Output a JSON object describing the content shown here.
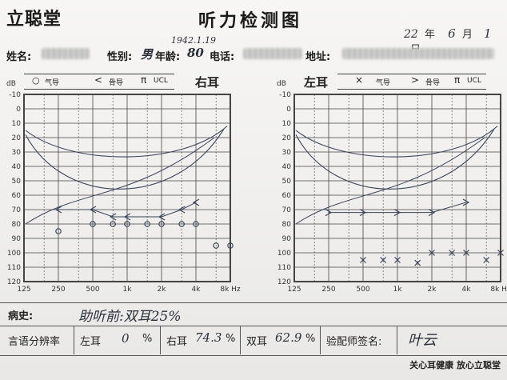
{
  "header": {
    "logo": "立聪堂",
    "title": "听力检测图",
    "date_year": "22",
    "date_year_unit": "年",
    "date_month": "6",
    "date_month_unit": "月",
    "date_day": "1",
    "date_day_unit": "日",
    "birth_date": "1942.1.19"
  },
  "patient": {
    "name_label": "姓名:",
    "gender_label": "性别:",
    "gender_value": "男",
    "age_label": "年龄:",
    "age_value": "80",
    "phone_label": "电话:",
    "address_label": "地址:"
  },
  "legend_right": {
    "air_symbol": "○",
    "air": "气导",
    "bone_symbol": "<",
    "bone": "骨导",
    "ucl_symbol": "π",
    "ucl": "UCL"
  },
  "legend_left": {
    "air_symbol": "×",
    "air": "气导",
    "bone_symbol": ">",
    "bone": "骨导",
    "ucl_symbol": "π",
    "ucl": "UCL"
  },
  "right_ear_title": "右耳",
  "left_ear_title": "左耳",
  "axis": {
    "db_unit": "dB",
    "hz_unit": "8k Hz",
    "y_ticks": [
      "-10",
      "0",
      "10",
      "20",
      "30",
      "40",
      "50",
      "60",
      "70",
      "80",
      "90",
      "100",
      "110",
      "120"
    ],
    "x_ticks": [
      "125",
      "250",
      "500",
      "1k",
      "2k",
      "4k"
    ]
  },
  "colors": {
    "pen": "#3a4458",
    "grid": "#444444",
    "paper": "#f3f2f0"
  },
  "chart_data": [
    {
      "type": "scatter",
      "title": "右耳",
      "xlabel": "Hz",
      "ylabel": "dB",
      "x_categories": [
        "125",
        "250",
        "500",
        "1k",
        "2k",
        "4k",
        "8k"
      ],
      "ylim": [
        -10,
        120
      ],
      "y_inverted": true,
      "series": [
        {
          "name": "气导",
          "marker": "○",
          "x": [
            "250",
            "500",
            "750",
            "1k",
            "1.5k",
            "2k",
            "3k",
            "4k",
            "6k",
            "8k"
          ],
          "y": [
            85,
            80,
            80,
            80,
            80,
            80,
            80,
            80,
            95,
            95
          ]
        },
        {
          "name": "骨导",
          "marker": "<",
          "x": [
            "250",
            "500",
            "750",
            "1k",
            "2k",
            "3k",
            "4k"
          ],
          "y": [
            70,
            70,
            75,
            75,
            75,
            70,
            65
          ]
        }
      ]
    },
    {
      "type": "scatter",
      "title": "左耳",
      "xlabel": "Hz",
      "ylabel": "dB",
      "x_categories": [
        "125",
        "250",
        "500",
        "1k",
        "2k",
        "4k",
        "8k"
      ],
      "ylim": [
        -10,
        120
      ],
      "y_inverted": true,
      "series": [
        {
          "name": "气导",
          "marker": "×",
          "x": [
            "500",
            "750",
            "1k",
            "1.5k",
            "2k",
            "3k",
            "4k",
            "6k",
            "8k"
          ],
          "y": [
            105,
            105,
            105,
            107,
            100,
            100,
            100,
            105,
            100
          ]
        },
        {
          "name": "骨导",
          "marker": ">",
          "x": [
            "250",
            "500",
            "1k",
            "2k",
            "4k"
          ],
          "y": [
            72,
            72,
            72,
            72,
            65
          ]
        }
      ]
    }
  ],
  "bottom": {
    "history_label": "病史:",
    "history_value": "助听前:双耳25%",
    "speech_label": "言语分辨率",
    "left_label": "左耳",
    "left_value": "0",
    "left_unit": "%",
    "right_label": "右耳",
    "right_value": "74.3",
    "right_unit": "%",
    "both_label": "双耳",
    "both_value": "62.9",
    "both_unit": "%",
    "signer_label": "验配师签名:",
    "signer_value": "叶云"
  },
  "footer": {
    "slogan": "关心耳健康  放心立聪堂"
  }
}
